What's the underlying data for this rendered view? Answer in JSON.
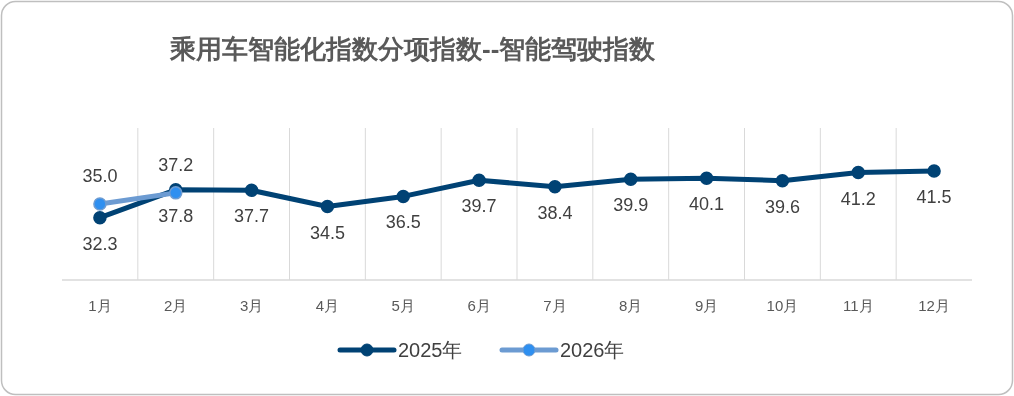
{
  "chart_data": {
    "type": "line",
    "title": "乘用车智能化指数分项指数--智能驾驶指数",
    "categories": [
      "1月",
      "2月",
      "3月",
      "4月",
      "5月",
      "6月",
      "7月",
      "8月",
      "9月",
      "10月",
      "11月",
      "12月"
    ],
    "series": [
      {
        "name": "2025年",
        "color": "#004274",
        "values": [
          32.3,
          37.8,
          37.7,
          34.5,
          36.5,
          39.7,
          38.4,
          39.9,
          40.1,
          39.6,
          41.2,
          41.5
        ],
        "value_labels": [
          "32.3",
          "37.8",
          "37.7",
          "34.5",
          "36.5",
          "39.7",
          "38.4",
          "39.9",
          "40.1",
          "39.6",
          "41.2",
          "41.5"
        ]
      },
      {
        "name": "2026年",
        "color": "#6c9bd2",
        "values": [
          35.0,
          37.2,
          null,
          null,
          null,
          null,
          null,
          null,
          null,
          null,
          null,
          null
        ],
        "value_labels": [
          "35.0",
          "37.2",
          null,
          null,
          null,
          null,
          null,
          null,
          null,
          null,
          null,
          null
        ]
      }
    ],
    "ylim": [
      20,
      50
    ],
    "grid": "x",
    "legend": "bottom",
    "marker": "circle",
    "line_style": "solid"
  }
}
